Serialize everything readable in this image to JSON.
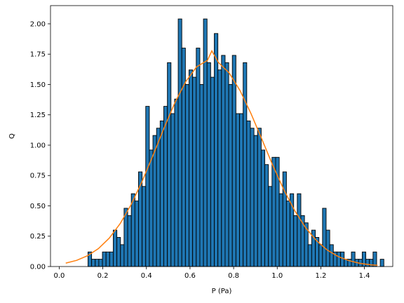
{
  "chart_data": {
    "type": "bar",
    "title": "",
    "xlabel": "P (Pa)",
    "ylabel": "Q",
    "xlim": [
      -0.04,
      1.53
    ],
    "ylim": [
      0,
      2.15
    ],
    "xticks": [
      0.0,
      0.2,
      0.4,
      0.6,
      0.8,
      1.0,
      1.2,
      1.4
    ],
    "xtick_labels": [
      "0.0",
      "0.2",
      "0.4",
      "0.6",
      "0.8",
      "1.0",
      "1.2",
      "1.4"
    ],
    "yticks": [
      0.0,
      0.25,
      0.5,
      0.75,
      1.0,
      1.25,
      1.5,
      1.75,
      2.0
    ],
    "ytick_labels": [
      "0.00",
      "0.25",
      "0.50",
      "0.75",
      "1.00",
      "1.25",
      "1.50",
      "1.75",
      "2.00"
    ],
    "grid": false,
    "histogram": {
      "bin_start": 0.132,
      "bin_width": 0.01655,
      "heights": [
        0.12,
        0.06,
        0.06,
        0.06,
        0.12,
        0.12,
        0.12,
        0.3,
        0.24,
        0.18,
        0.48,
        0.42,
        0.6,
        0.54,
        0.78,
        0.66,
        1.32,
        0.96,
        1.08,
        1.14,
        1.2,
        1.32,
        1.68,
        1.26,
        1.38,
        2.04,
        1.8,
        1.5,
        1.62,
        1.56,
        1.8,
        1.5,
        2.04,
        1.68,
        1.56,
        1.92,
        1.62,
        1.74,
        1.68,
        1.5,
        1.74,
        1.26,
        1.26,
        1.68,
        1.2,
        1.14,
        1.08,
        1.14,
        0.96,
        0.84,
        0.66,
        0.9,
        0.9,
        0.6,
        0.78,
        0.54,
        0.6,
        0.42,
        0.6,
        0.42,
        0.36,
        0.18,
        0.3,
        0.24,
        0.18,
        0.48,
        0.3,
        0.18,
        0.12,
        0.12,
        0.12,
        0.06,
        0.06,
        0.12,
        0.06,
        0.06,
        0.12,
        0.06,
        0.06,
        0.12,
        0.0,
        0.06
      ],
      "color": "#1f77b4",
      "edgecolor": "#000000"
    },
    "series": [
      {
        "type": "line",
        "color": "#ff7f0e",
        "x": [
          0.03,
          0.08,
          0.13,
          0.18,
          0.23,
          0.28,
          0.33,
          0.38,
          0.43,
          0.48,
          0.53,
          0.58,
          0.63,
          0.68,
          0.7,
          0.73,
          0.78,
          0.83,
          0.88,
          0.93,
          0.98,
          1.03,
          1.08,
          1.13,
          1.18,
          1.23,
          1.28,
          1.33,
          1.38,
          1.43,
          1.46
        ],
        "y": [
          0.028,
          0.051,
          0.089,
          0.148,
          0.235,
          0.355,
          0.511,
          0.701,
          0.915,
          1.138,
          1.348,
          1.523,
          1.645,
          1.699,
          1.777,
          1.682,
          1.594,
          1.448,
          1.259,
          1.047,
          0.832,
          0.634,
          0.461,
          0.32,
          0.213,
          0.135,
          0.082,
          0.048,
          0.026,
          0.014,
          0.01
        ]
      }
    ]
  }
}
